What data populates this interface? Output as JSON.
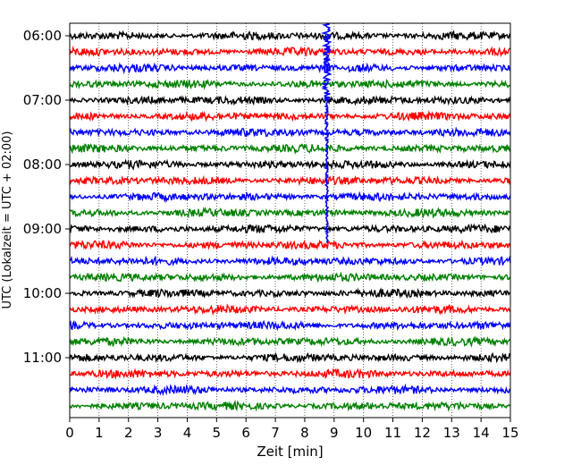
{
  "chart_data": {
    "type": "line",
    "title": "",
    "xlabel": "Zeit  [min]",
    "ylabel": "UTC (Lokalzeit = UTC + 02:00)",
    "xlim": [
      0,
      15
    ],
    "xticks": [
      "0",
      "1",
      "2",
      "3",
      "4",
      "5",
      "6",
      "7",
      "8",
      "9",
      "10",
      "11",
      "12",
      "13",
      "14",
      "15"
    ],
    "yticks": [
      {
        "label": "06:00",
        "row": 0
      },
      {
        "label": "07:00",
        "row": 4
      },
      {
        "label": "08:00",
        "row": 8
      },
      {
        "label": "09:00",
        "row": 12
      },
      {
        "label": "10:00",
        "row": 16
      },
      {
        "label": "11:00",
        "row": 20
      }
    ],
    "grid": "vertical dotted",
    "trace_interval_min": 15,
    "start_time": "06:00",
    "colors": [
      "#000000",
      "#ff0000",
      "#0000ff",
      "#008000"
    ],
    "traces": [
      {
        "start": "06:00",
        "color": "#000000"
      },
      {
        "start": "06:15",
        "color": "#ff0000"
      },
      {
        "start": "06:30",
        "color": "#0000ff"
      },
      {
        "start": "06:45",
        "color": "#008000"
      },
      {
        "start": "07:00",
        "color": "#000000"
      },
      {
        "start": "07:15",
        "color": "#ff0000"
      },
      {
        "start": "07:30",
        "color": "#0000ff"
      },
      {
        "start": "07:45",
        "color": "#008000"
      },
      {
        "start": "08:00",
        "color": "#000000"
      },
      {
        "start": "08:15",
        "color": "#ff0000"
      },
      {
        "start": "08:30",
        "color": "#0000ff"
      },
      {
        "start": "08:45",
        "color": "#008000"
      },
      {
        "start": "09:00",
        "color": "#000000"
      },
      {
        "start": "09:15",
        "color": "#ff0000"
      },
      {
        "start": "09:30",
        "color": "#0000ff"
      },
      {
        "start": "09:45",
        "color": "#008000"
      },
      {
        "start": "10:00",
        "color": "#000000"
      },
      {
        "start": "10:15",
        "color": "#ff0000"
      },
      {
        "start": "10:30",
        "color": "#0000ff"
      },
      {
        "start": "10:45",
        "color": "#008000"
      },
      {
        "start": "11:00",
        "color": "#000000"
      },
      {
        "start": "11:15",
        "color": "#ff0000"
      },
      {
        "start": "11:30",
        "color": "#0000ff"
      },
      {
        "start": "11:45",
        "color": "#008000"
      }
    ],
    "event": {
      "time_min": 8.75,
      "color": "#0000ff"
    }
  }
}
